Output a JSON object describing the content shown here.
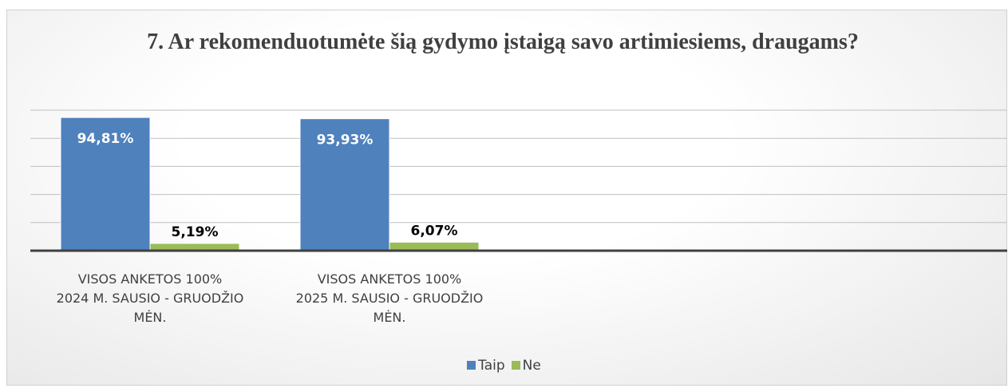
{
  "chart_data": {
    "type": "bar",
    "title": "7. Ar rekomenduotumėte šią gydymo įstaigą savo artimiesiems, draugams?",
    "categories": [
      "VISOS ANKETOS 100%\n2024 M. SAUSIO - GRUODŽIO\nMĖN.",
      "VISOS ANKETOS 100%\n2025 M. SAUSIO - GRUODŽIO\nMĖN.",
      null,
      null
    ],
    "series": [
      {
        "name": "Taip",
        "color": "#4f81bd",
        "values": [
          94.81,
          93.93,
          null,
          null
        ],
        "value_labels": [
          "94,81%",
          "93,93%",
          null,
          null
        ]
      },
      {
        "name": "Ne",
        "color": "#9bbb59",
        "values": [
          5.19,
          6.07,
          null,
          null
        ],
        "value_labels": [
          "5,19%",
          "6,07%",
          null,
          null
        ]
      }
    ],
    "ylim": [
      0,
      100
    ],
    "yticks": [
      0,
      20,
      40,
      60,
      80,
      100
    ],
    "grid": true,
    "legend": "bottom"
  }
}
